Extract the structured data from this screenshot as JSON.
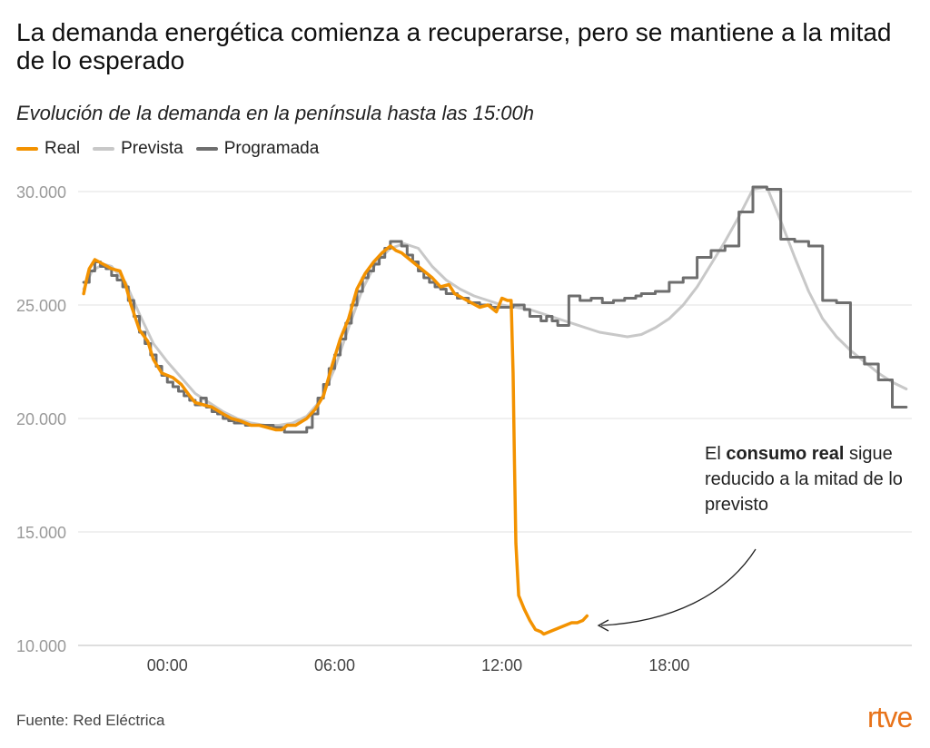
{
  "title": "La demanda energética comienza a recuperarse, pero se mantiene a la mitad de lo esperado",
  "subtitle": "Evolución de la demanda en la península hasta las 15:00h",
  "legend": [
    {
      "label": "Real",
      "color": "#f39200"
    },
    {
      "label": "Prevista",
      "color": "#c8c8c8"
    },
    {
      "label": "Programada",
      "color": "#6e6e6e"
    }
  ],
  "annotation": {
    "pre": "El ",
    "bold": "consumo real",
    "post": " sigue reducido a la mitad de lo previsto"
  },
  "source": "Fuente: Red Eléctrica",
  "logo": "rtve",
  "chart_data": {
    "type": "line",
    "x_unit": "hours (0 = 00:00)",
    "xlim": [
      -3.2,
      26.7
    ],
    "ylim": [
      10000,
      30000
    ],
    "y_ticks": [
      10000,
      15000,
      20000,
      25000,
      30000
    ],
    "y_tick_labels": [
      "10.000",
      "15.000",
      "20.000",
      "25.000",
      "30.000"
    ],
    "x_ticks": [
      0,
      6,
      12,
      18
    ],
    "x_tick_labels": [
      "00:00",
      "06:00",
      "12:00",
      "18:00"
    ],
    "grid": true,
    "legend_position": "top-left",
    "series": [
      {
        "name": "Real",
        "color": "#f39200",
        "x": [
          -3.0,
          -2.9,
          -2.8,
          -2.6,
          -2.3,
          -2.0,
          -1.7,
          -1.5,
          -1.3,
          -1.0,
          -0.7,
          -0.5,
          -0.2,
          0.2,
          0.5,
          0.8,
          1.0,
          1.3,
          1.6,
          2.0,
          2.3,
          2.6,
          3.0,
          3.3,
          3.6,
          3.9,
          4.1,
          4.3,
          4.6,
          5.0,
          5.3,
          5.6,
          5.9,
          6.2,
          6.5,
          6.8,
          7.1,
          7.4,
          7.7,
          8.0,
          8.2,
          8.4,
          8.6,
          8.9,
          9.2,
          9.5,
          9.8,
          10.1,
          10.3,
          10.6,
          10.9,
          11.2,
          11.5,
          11.8,
          12.0,
          12.2,
          12.33,
          12.4,
          12.45,
          12.5,
          12.6,
          12.8,
          13.0,
          13.2,
          13.4,
          13.5,
          13.7,
          13.9,
          14.1,
          14.3,
          14.5,
          14.7,
          14.9,
          15.05
        ],
        "y": [
          25500,
          26100,
          26600,
          27000,
          26800,
          26600,
          26500,
          25900,
          25000,
          23900,
          23400,
          22600,
          22000,
          21800,
          21500,
          21000,
          20700,
          20600,
          20500,
          20200,
          20000,
          19900,
          19700,
          19700,
          19600,
          19500,
          19500,
          19700,
          19700,
          20000,
          20400,
          21000,
          22300,
          23500,
          24400,
          25700,
          26400,
          26900,
          27300,
          27600,
          27400,
          27300,
          27100,
          26800,
          26500,
          26200,
          25800,
          25900,
          25500,
          25300,
          25100,
          24900,
          25000,
          24700,
          25300,
          25200,
          25200,
          22000,
          18000,
          14500,
          12200,
          11600,
          11100,
          10700,
          10600,
          10500,
          10600,
          10700,
          10800,
          10900,
          11000,
          11000,
          11100,
          11300
        ]
      },
      {
        "name": "Prevista",
        "color": "#c8c8c8",
        "x": [
          -3.0,
          -2.7,
          -2.3,
          -2.0,
          -1.5,
          -1.0,
          -0.5,
          0.0,
          0.5,
          1.0,
          1.5,
          2.0,
          2.5,
          3.0,
          3.5,
          4.0,
          4.5,
          5.0,
          5.5,
          6.0,
          6.5,
          7.0,
          7.5,
          8.0,
          8.5,
          9.0,
          9.5,
          10.0,
          10.5,
          11.0,
          11.5,
          12.0,
          12.5,
          13.0,
          13.5,
          14.0,
          14.5,
          15.0,
          15.5,
          16.0,
          16.5,
          17.0,
          17.5,
          18.0,
          18.5,
          19.0,
          19.5,
          20.0,
          20.5,
          21.0,
          21.5,
          22.0,
          22.5,
          23.0,
          23.5,
          24.0,
          24.5,
          25.0,
          25.5,
          26.0,
          26.5
        ],
        "y": [
          25700,
          26500,
          26800,
          26700,
          26000,
          24600,
          23300,
          22500,
          21800,
          21100,
          20700,
          20300,
          20000,
          19800,
          19700,
          19700,
          19800,
          20100,
          20800,
          22200,
          24000,
          25700,
          26900,
          27500,
          27700,
          27500,
          26700,
          26100,
          25700,
          25400,
          25200,
          25000,
          24900,
          24800,
          24600,
          24400,
          24200,
          24000,
          23800,
          23700,
          23600,
          23700,
          24000,
          24400,
          25000,
          25800,
          26800,
          27800,
          28900,
          30100,
          30200,
          28700,
          27100,
          25600,
          24400,
          23600,
          23000,
          22500,
          22000,
          21600,
          21300
        ]
      },
      {
        "name": "Programada",
        "color": "#6e6e6e",
        "x": [
          -3.0,
          -2.8,
          -2.6,
          -2.4,
          -2.2,
          -2.0,
          -1.8,
          -1.6,
          -1.4,
          -1.2,
          -1.0,
          -0.8,
          -0.6,
          -0.4,
          -0.2,
          0.0,
          0.2,
          0.4,
          0.6,
          0.8,
          1.0,
          1.2,
          1.4,
          1.6,
          1.8,
          2.0,
          2.2,
          2.4,
          2.6,
          2.8,
          3.0,
          3.4,
          3.8,
          4.2,
          4.6,
          5.0,
          5.2,
          5.4,
          5.6,
          5.8,
          6.0,
          6.2,
          6.4,
          6.6,
          6.8,
          7.0,
          7.2,
          7.4,
          7.6,
          7.8,
          8.0,
          8.2,
          8.4,
          8.6,
          8.8,
          9.0,
          9.2,
          9.4,
          9.6,
          9.8,
          10.0,
          10.4,
          10.8,
          11.2,
          11.6,
          12.0,
          12.4,
          12.8,
          13.0,
          13.4,
          13.6,
          13.8,
          14.0,
          14.4,
          14.8,
          15.2,
          15.6,
          16.0,
          16.4,
          16.8,
          17.0,
          17.5,
          18.0,
          18.5,
          19.0,
          19.5,
          20.0,
          20.5,
          21.0,
          21.5,
          22.0,
          22.5,
          23.0,
          23.5,
          24.0,
          24.5,
          25.0,
          25.5,
          26.0,
          26.5
        ],
        "y": [
          26000,
          26500,
          26900,
          26700,
          26600,
          26300,
          26100,
          25800,
          25200,
          24500,
          23800,
          23300,
          22800,
          22300,
          21900,
          21600,
          21400,
          21200,
          21000,
          20800,
          20600,
          20900,
          20500,
          20300,
          20200,
          20000,
          19900,
          19800,
          19800,
          19700,
          19700,
          19700,
          19600,
          19400,
          19400,
          19600,
          20200,
          20900,
          21500,
          22200,
          22800,
          23500,
          24200,
          25000,
          25600,
          26200,
          26500,
          26800,
          27100,
          27500,
          27800,
          27800,
          27600,
          27200,
          26900,
          26500,
          26200,
          26000,
          25800,
          25700,
          25500,
          25300,
          25100,
          25000,
          24900,
          24900,
          25000,
          24800,
          24500,
          24300,
          24500,
          24300,
          24100,
          25400,
          25200,
          25300,
          25100,
          25200,
          25300,
          25400,
          25500,
          25600,
          26000,
          26200,
          27100,
          27400,
          27600,
          29100,
          30200,
          30100,
          27900,
          27800,
          27600,
          25200,
          25100,
          22700,
          22400,
          21700,
          20500,
          20500
        ]
      }
    ]
  }
}
